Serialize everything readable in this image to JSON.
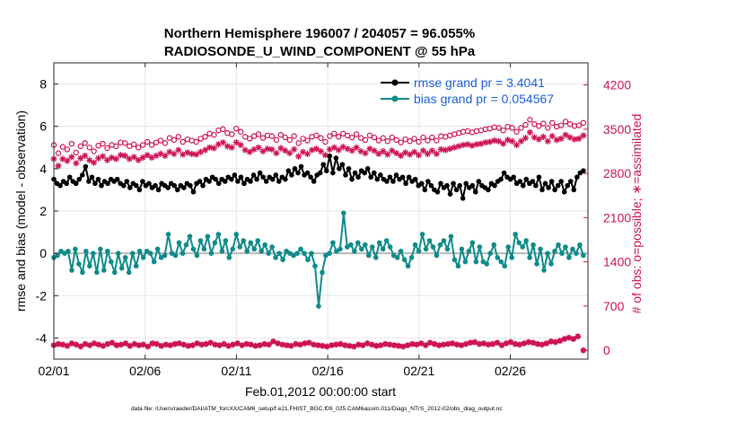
{
  "chart_data": {
    "type": "line",
    "title_line1": "Northern Hemisphere 196007 / 204057 = 96.055%",
    "title_line2": "RADIOSONDE_U_WIND_COMPONENT @ 55 hPa",
    "xlabel": "Feb.01,2012 00:00:00 start",
    "ylabel_left": "rmse and bias (model - observation)",
    "ylabel_right": "# of obs: o=possible; ∗=assimilated",
    "footer": "data file: /Users/raeder/DAI/ATM_forcXX/CAM6_setup/f.e21.FHIST_BGC.f09_025.CAM6assim.011/Diags_NTrS_2012-02/obs_diag_output.nc",
    "xlim": [
      0,
      29.25
    ],
    "ylim_left": [
      -5,
      9
    ],
    "ylim_right": [
      -140,
      4550
    ],
    "x_ticks": [
      0,
      5,
      10,
      15,
      20,
      25
    ],
    "x_tick_labels": [
      "02/01",
      "02/06",
      "02/11",
      "02/16",
      "02/21",
      "02/26"
    ],
    "y_ticks_left": [
      "-4",
      "-2",
      "0",
      "2",
      "4",
      "6",
      "8"
    ],
    "y_ticks_right": [
      "0",
      "700",
      "1400",
      "2100",
      "2800",
      "3500",
      "4200"
    ],
    "colors": {
      "rmse": "#000000",
      "bias": "#108a8a",
      "obs": "#cc1155",
      "legend_text": "#1a5fd6",
      "zero_line": "#b8b8b8"
    },
    "legend": [
      {
        "name": "rmse grand pr = 3.4041",
        "series": "rmse"
      },
      {
        "name": "bias grand pr = 0.054567",
        "series": "bias"
      }
    ],
    "series_rmse": [
      3.5,
      3.3,
      3.2,
      3.4,
      3.3,
      3.6,
      3.4,
      3.3,
      3.5,
      3.7,
      4.1,
      3.4,
      3.6,
      3.3,
      3.5,
      3.2,
      3.4,
      3.3,
      3.5,
      3.4,
      3.5,
      3.3,
      3.2,
      3.4,
      3.1,
      3.3,
      3.2,
      3.0,
      3.4,
      3.2,
      3.3,
      3.1,
      3.2,
      3.0,
      3.3,
      3.2,
      3.1,
      3.3,
      3.2,
      3.0,
      3.2,
      3.1,
      3.3,
      3.2,
      2.9,
      3.3,
      3.4,
      3.2,
      3.5,
      3.4,
      3.6,
      3.5,
      3.3,
      3.5,
      3.4,
      3.6,
      3.5,
      3.7,
      3.4,
      3.6,
      3.3,
      3.5,
      3.4,
      3.7,
      3.5,
      3.8,
      3.6,
      3.4,
      3.6,
      3.5,
      3.7,
      3.4,
      3.6,
      3.5,
      3.9,
      3.7,
      4.0,
      3.8,
      4.1,
      3.7,
      3.8,
      3.6,
      3.4,
      3.7,
      3.8,
      4.2,
      3.9,
      4.6,
      3.8,
      4.5,
      4.0,
      4.2,
      3.7,
      4.0,
      3.5,
      3.8,
      3.6,
      3.9,
      3.8,
      4.0,
      3.6,
      3.8,
      3.5,
      3.7,
      3.5,
      3.4,
      3.6,
      3.4,
      3.7,
      3.5,
      3.6,
      3.3,
      3.6,
      3.4,
      3.5,
      3.2,
      3.3,
      3.0,
      3.4,
      3.2,
      3.0,
      2.9,
      3.3,
      3.1,
      3.2,
      2.8,
      3.3,
      3.0,
      3.2,
      2.6,
      3.3,
      3.1,
      3.2,
      2.9,
      3.4,
      3.2,
      3.1,
      3.0,
      3.3,
      3.2,
      3.4,
      3.5,
      3.8,
      3.6,
      3.5,
      3.6,
      3.3,
      3.4,
      3.2,
      3.5,
      3.3,
      3.4,
      3.2,
      3.6,
      3.0,
      3.3,
      3.1,
      3.4,
      3.0,
      3.2,
      3.4,
      2.9,
      3.2,
      3.4,
      3.0,
      3.6,
      3.8,
      3.9
    ],
    "series_bias": [
      -0.2,
      -0.1,
      0.1,
      0.0,
      0.1,
      -0.8,
      0.2,
      -0.5,
      -0.9,
      0.1,
      -0.6,
      0.0,
      -0.9,
      0.2,
      -0.8,
      0.1,
      -0.4,
      -0.9,
      0.0,
      -0.7,
      -0.2,
      -0.9,
      0.0,
      -0.6,
      0.1,
      -0.2,
      0.1,
      0.0,
      -0.4,
      0.2,
      -0.2,
      -0.1,
      0.9,
      0.0,
      -0.1,
      0.5,
      0.0,
      0.4,
      0.8,
      0.2,
      -0.1,
      0.6,
      0.2,
      0.8,
      0.0,
      0.5,
      0.9,
      0.1,
      0.6,
      -0.2,
      0.2,
      0.9,
      0.3,
      0.6,
      0.1,
      0.5,
      0.2,
      0.6,
      0.1,
      0.4,
      0.0,
      0.3,
      -0.2,
      0.0,
      -0.3,
      0.1,
      0.0,
      -0.1,
      0.0,
      0.2,
      0.0,
      -0.3,
      0.0,
      -0.6,
      -2.5,
      -0.9,
      -0.1,
      0.0,
      0.5,
      0.1,
      0.2,
      1.9,
      0.3,
      0.4,
      0.1,
      0.5,
      0.2,
      0.4,
      -0.1,
      0.3,
      -0.2,
      0.5,
      0.2,
      0.6,
      0.3,
      -0.1,
      -0.2,
      0.1,
      -0.3,
      -0.6,
      -0.2,
      0.4,
      0.1,
      0.9,
      0.2,
      0.6,
      0.3,
      -0.1,
      0.4,
      0.6,
      0.2,
      0.8,
      -0.3,
      -0.6,
      0.2,
      -0.4,
      0.1,
      0.5,
      -0.4,
      0.3,
      -0.4,
      -0.5,
      0.0,
      0.4,
      -0.2,
      -0.4,
      -0.6,
      0.3,
      -0.2,
      0.9,
      0.5,
      0.3,
      0.6,
      -0.2,
      0.4,
      -0.5,
      0.2,
      -0.8,
      0.0,
      -0.5,
      0.1,
      0.4,
      0.0,
      0.3,
      -0.2,
      0.2,
      0.0,
      0.4,
      -0.1
    ],
    "series_possible": [
      3250,
      3120,
      3220,
      3180,
      3270,
      3130,
      3230,
      3280,
      3210,
      3150,
      3240,
      3270,
      3200,
      3250,
      3230,
      3290,
      3280,
      3230,
      3260,
      3210,
      3250,
      3300,
      3250,
      3290,
      3320,
      3280,
      3360,
      3330,
      3380,
      3300,
      3340,
      3320,
      3300,
      3350,
      3380,
      3430,
      3410,
      3480,
      3500,
      3440,
      3420,
      3510,
      3460,
      3380,
      3350,
      3390,
      3420,
      3360,
      3400,
      3390,
      3330,
      3410,
      3370,
      3330,
      3390,
      3280,
      3350,
      3320,
      3380,
      3400,
      3360,
      3300,
      3390,
      3430,
      3380,
      3430,
      3400,
      3370,
      3420,
      3360,
      3330,
      3400,
      3370,
      3320,
      3360,
      3310,
      3370,
      3330,
      3290,
      3340,
      3310,
      3350,
      3300,
      3370,
      3320,
      3370,
      3320,
      3390,
      3380,
      3400,
      3420,
      3440,
      3460,
      3470,
      3450,
      3470,
      3480,
      3500,
      3510,
      3530,
      3520,
      3480,
      3540,
      3520,
      3460,
      3520,
      3570,
      3650,
      3580,
      3550,
      3590,
      3520,
      3600,
      3540,
      3560,
      3620,
      3580,
      3550,
      3560,
      3600
    ],
    "series_assimilated": [
      3030,
      2920,
      3030,
      3000,
      3060,
      2960,
      3040,
      3080,
      3010,
      2970,
      3040,
      3070,
      3010,
      3050,
      3030,
      3090,
      3080,
      3030,
      3060,
      3010,
      3050,
      3090,
      3050,
      3080,
      3110,
      3080,
      3140,
      3110,
      3170,
      3100,
      3130,
      3110,
      3100,
      3140,
      3170,
      3210,
      3200,
      3260,
      3290,
      3230,
      3210,
      3290,
      3250,
      3170,
      3140,
      3180,
      3210,
      3150,
      3190,
      3180,
      3120,
      3200,
      3160,
      3120,
      3180,
      3070,
      3140,
      3110,
      3170,
      3190,
      3150,
      3090,
      3180,
      3210,
      3170,
      3220,
      3190,
      3160,
      3210,
      3150,
      3120,
      3190,
      3160,
      3110,
      3150,
      3100,
      3160,
      3120,
      3080,
      3130,
      3100,
      3140,
      3090,
      3160,
      3110,
      3160,
      3110,
      3180,
      3170,
      3190,
      3210,
      3230,
      3250,
      3260,
      3240,
      3260,
      3270,
      3290,
      3300,
      3320,
      3310,
      3270,
      3330,
      3310,
      3250,
      3310,
      3360,
      3450,
      3370,
      3340,
      3380,
      3310,
      3390,
      3330,
      3350,
      3410,
      3370,
      3340,
      3350,
      3400
    ],
    "series_bottom": [
      80,
      100,
      90,
      70,
      110,
      90,
      60,
      100,
      80,
      110,
      90,
      70,
      100,
      120,
      80,
      90,
      110,
      70,
      100,
      80,
      90,
      60,
      110,
      100,
      70,
      90,
      80,
      100,
      110,
      90,
      70,
      80,
      110,
      90,
      100,
      120,
      90,
      80,
      100,
      70,
      90,
      110,
      80,
      100,
      90,
      70,
      80,
      100,
      90,
      140,
      110,
      90,
      80,
      70,
      100,
      90,
      110,
      120,
      90,
      80,
      70,
      60,
      80,
      90,
      100,
      80,
      70,
      60,
      90,
      80,
      110,
      90,
      70,
      80,
      100,
      90,
      80,
      70,
      60,
      80,
      100,
      90,
      110,
      80,
      120,
      100,
      80,
      90,
      100,
      110,
      90,
      80,
      100,
      120,
      130,
      100,
      110,
      90,
      100,
      120,
      80,
      110,
      130,
      100,
      90,
      110,
      130,
      120,
      100,
      90,
      110,
      140,
      130,
      150,
      180,
      200,
      180,
      220
    ],
    "bottom_last_x": 29.0,
    "bottom_last_value": 0
  }
}
